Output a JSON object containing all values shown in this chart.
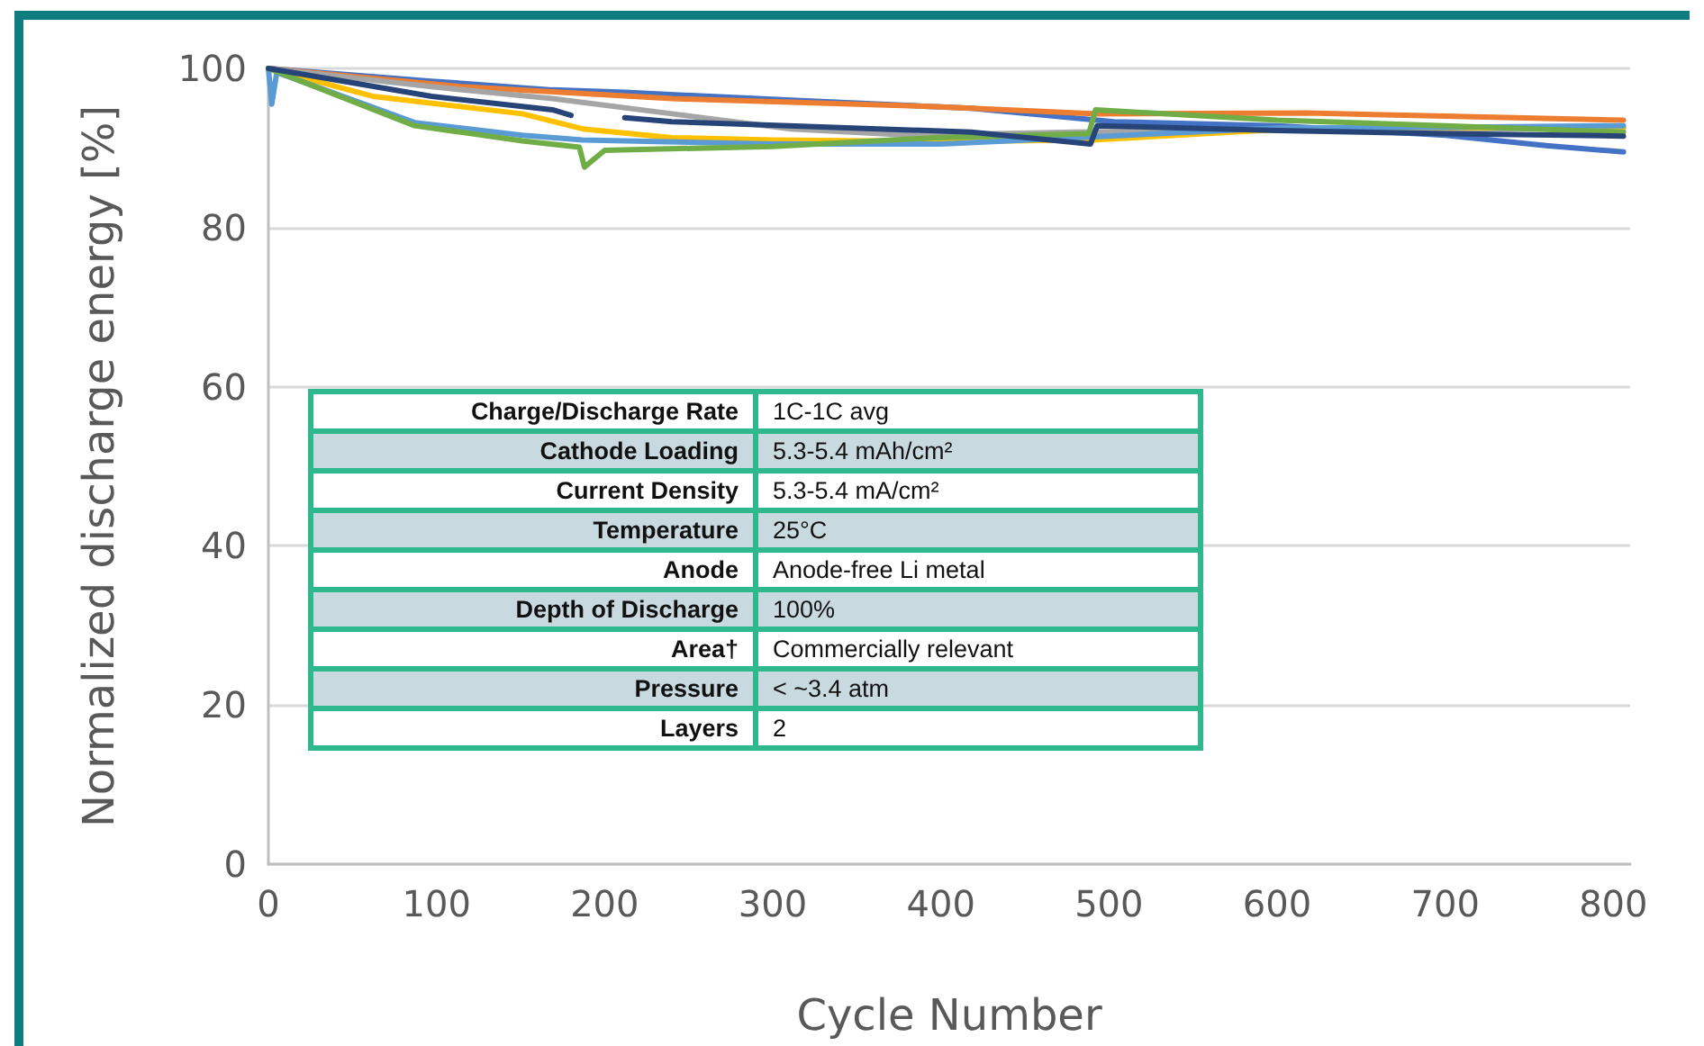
{
  "chart_data": {
    "type": "line",
    "xlabel": "Cycle Number",
    "ylabel": "Normalized discharge energy [%]",
    "xlim": [
      0,
      810
    ],
    "ylim": [
      0,
      100
    ],
    "xticks": [
      0,
      100,
      200,
      300,
      400,
      500,
      600,
      700,
      800
    ],
    "yticks": [
      0,
      20,
      40,
      60,
      80,
      100
    ],
    "grid": "y",
    "marker": "none",
    "line_style": "solid",
    "series": [
      {
        "color": "#4472c4",
        "x": [
          0,
          97,
          169,
          212,
          311,
          418,
          503,
          600,
          700,
          760,
          806
        ],
        "values": [
          100,
          98.4,
          97.3,
          97,
          96,
          95,
          93.3,
          92.8,
          91.6,
          90.3,
          89.5
        ]
      },
      {
        "color": "#ed7d31",
        "x": [
          0,
          115,
          240,
          397,
          493,
          618,
          700,
          806
        ],
        "values": [
          100,
          97.7,
          96.2,
          95.2,
          94.3,
          94.4,
          94,
          93.5
        ]
      },
      {
        "color": "#a5a5a5",
        "x": [
          0,
          97,
          169,
          240,
          311,
          382,
          480,
          600,
          700,
          806
        ],
        "values": [
          100,
          97.7,
          96.2,
          94.3,
          92.4,
          91.6,
          92,
          92.3,
          92.4,
          92.5
        ]
      },
      {
        "color": "#ffc000",
        "x": [
          0,
          62,
          151,
          187,
          240,
          300,
          400,
          490,
          600,
          700,
          806
        ],
        "values": [
          100,
          96.5,
          94.3,
          92.4,
          91.3,
          91,
          90.8,
          91,
          92.3,
          92.5,
          92.6
        ]
      },
      {
        "color": "#5b9bd5",
        "x": [
          0,
          2,
          5,
          87,
          151,
          187,
          300,
          400,
          500,
          600,
          700,
          806
        ],
        "values": [
          100,
          95.5,
          99.5,
          93.2,
          91.6,
          91,
          90.5,
          90.5,
          91.5,
          92.5,
          92.6,
          92.8
        ]
      },
      {
        "color": "#70ad47",
        "x": [
          0,
          87,
          151,
          185,
          188,
          200,
          300,
          397,
          488,
          492,
          600,
          700,
          806
        ],
        "values": [
          100,
          92.8,
          90.9,
          90.1,
          87.6,
          89.7,
          90.2,
          91.3,
          91.8,
          94.8,
          93.5,
          92.8,
          92
        ]
      },
      {
        "color": "#264478",
        "x": [
          0,
          97,
          169,
          180,
          186,
          212,
          240,
          418,
          489,
          493,
          600,
          700,
          806
        ],
        "values": [
          100,
          96.5,
          94.8,
          94.1,
          null,
          93.8,
          93.3,
          92,
          90.5,
          92.8,
          92.2,
          91.8,
          91.5
        ]
      }
    ],
    "annotations": [
      "Charge/Discharge Rate",
      "1C-1C avg",
      "Cathode Loading",
      "5.3-5.4 mAh/cm²",
      "Current Density",
      "5.3-5.4 mA/cm²",
      "Temperature",
      "25°C",
      "Anode",
      "Anode-free Li metal",
      "Depth of Discharge",
      "100%",
      "Area†",
      "Commercially relevant",
      "Pressure",
      "< ~3.4 atm",
      "Layers",
      "2"
    ]
  }
}
